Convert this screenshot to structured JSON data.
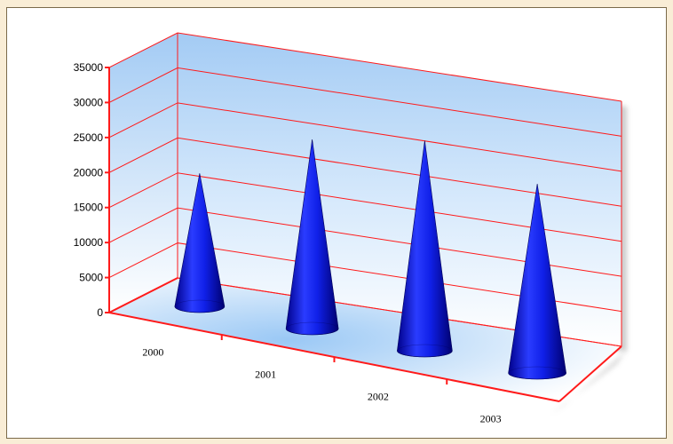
{
  "chart_data": {
    "type": "bar",
    "style": "3d-cone",
    "categories": [
      "2000",
      "2001",
      "2002",
      "2003"
    ],
    "series": [
      {
        "values": [
          19000,
          27000,
          30000,
          27000
        ]
      }
    ],
    "ylim": [
      0,
      35000
    ],
    "yticks": [
      "0",
      "5000",
      "10000",
      "15000",
      "20000",
      "25000",
      "30000",
      "35000"
    ],
    "grid": true,
    "legend": "none",
    "colors": {
      "cone": "#0a14e0",
      "grid": "#ff1a1a",
      "wall_top": "#a8cff5",
      "wall_bottom": "#ffffff",
      "page_background": "#f9edd6"
    }
  }
}
